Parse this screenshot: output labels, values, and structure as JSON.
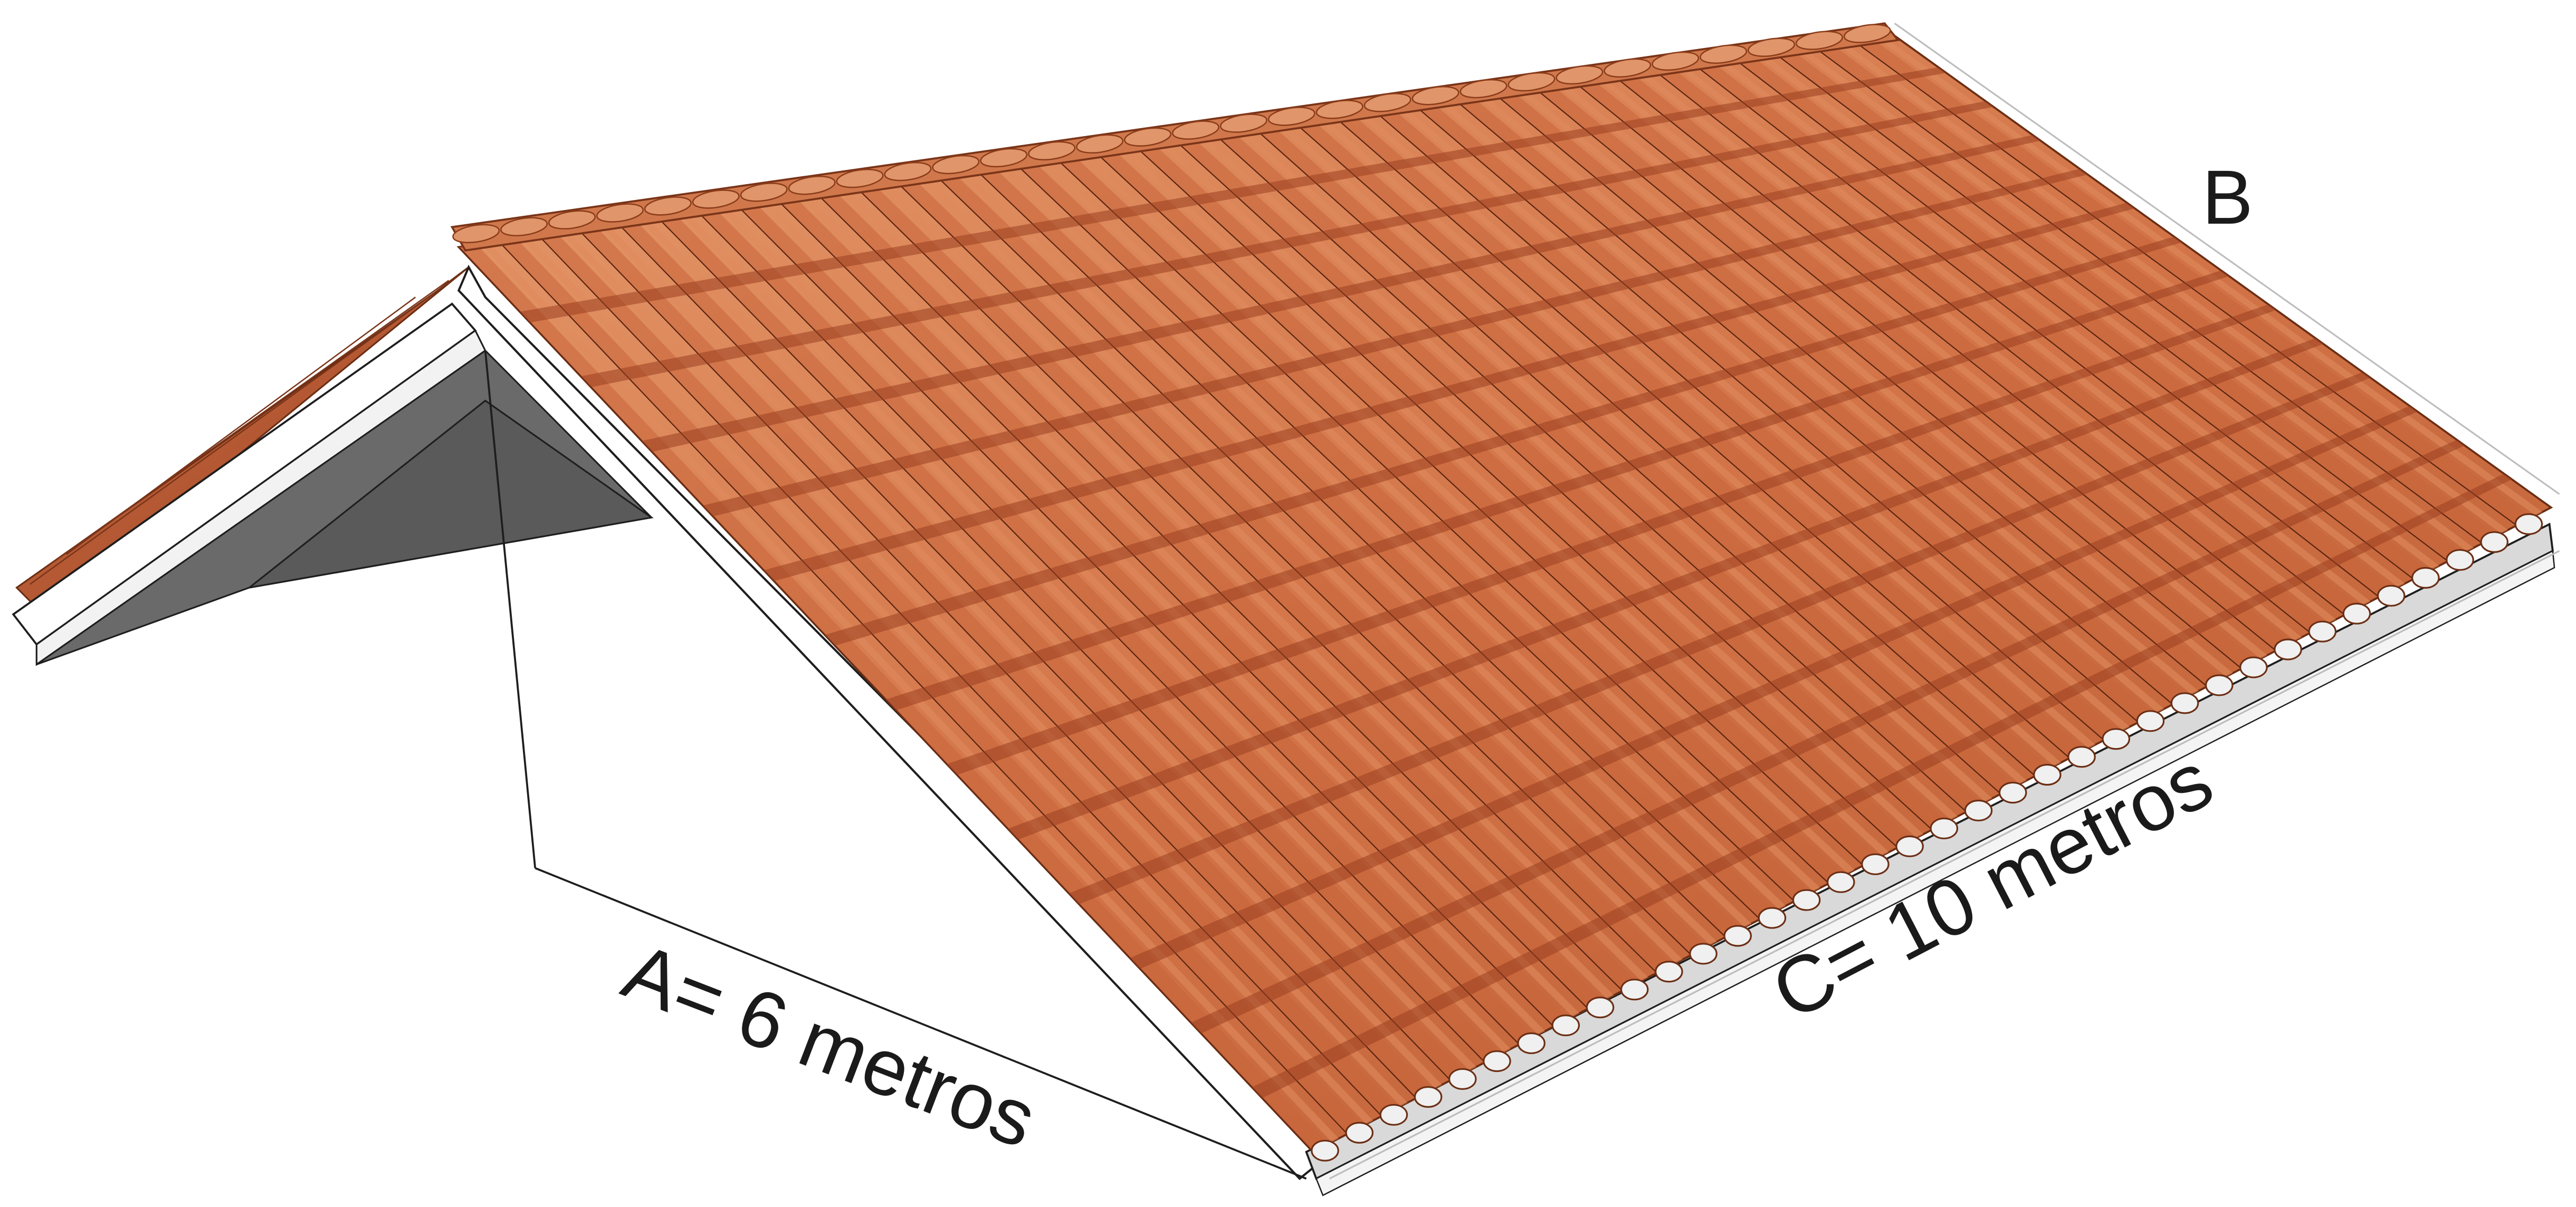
{
  "figure": {
    "labels": {
      "a": "A= 6 metros",
      "b": "B",
      "c": "C= 10 metros"
    },
    "colors": {
      "tile_light": "#e08a5e",
      "tile_mid": "#c8643a",
      "tile_dark": "#9a4021",
      "fascia": "#ffffff",
      "gable_shadow": "#6a6a6a",
      "outline": "#1e1e1e"
    }
  }
}
